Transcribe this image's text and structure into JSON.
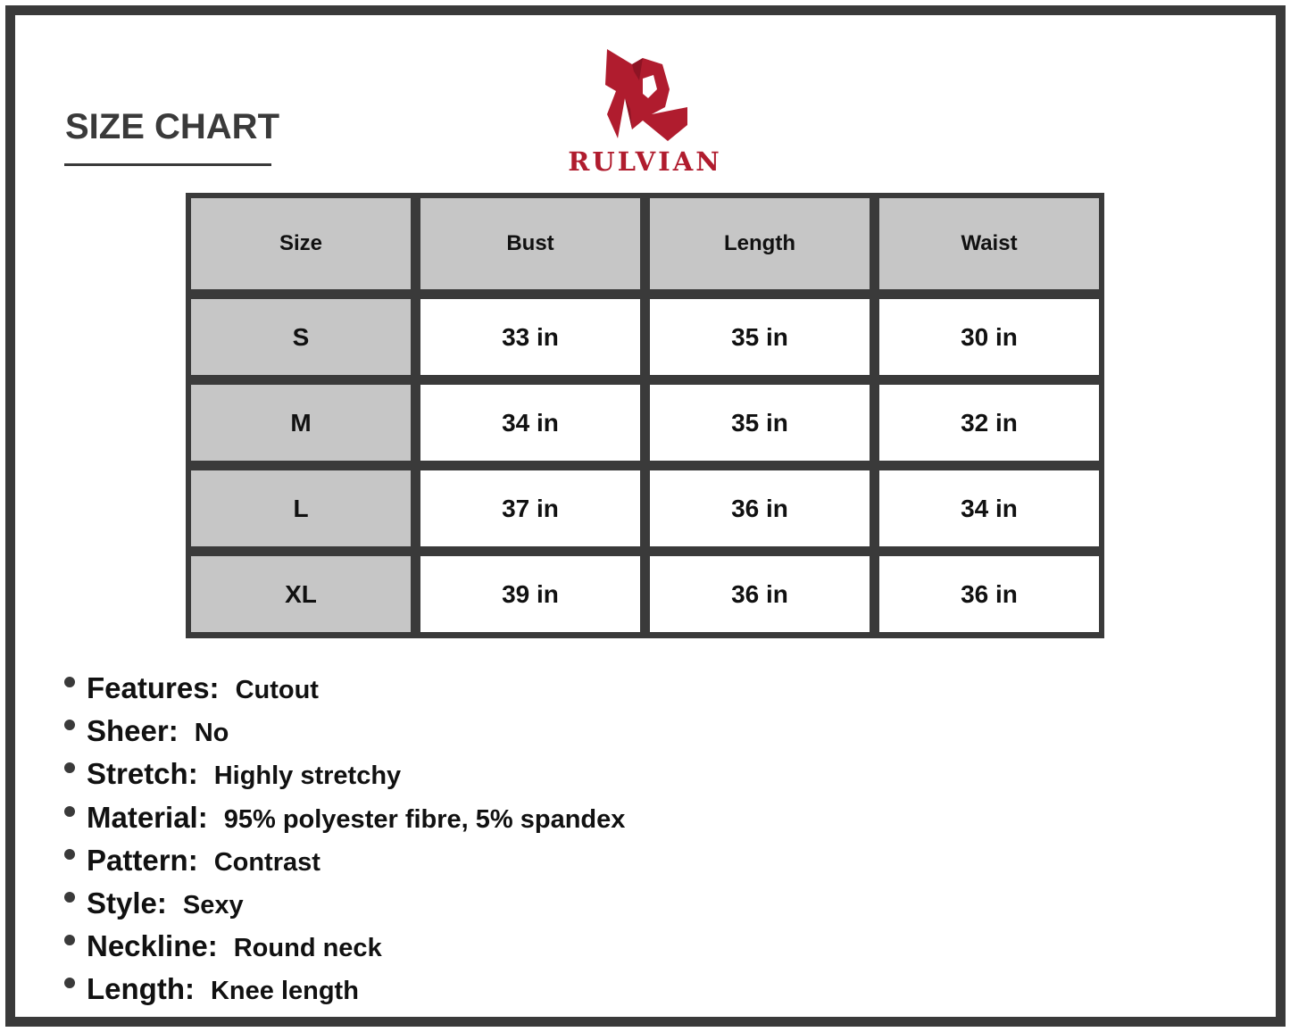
{
  "title": "SIZE CHART",
  "brand": {
    "name": "RULVIAN",
    "color": "#b01c2e"
  },
  "table": {
    "headers": [
      "Size",
      "Bust",
      "Length",
      "Waist"
    ],
    "rows": [
      [
        "S",
        "33 in",
        "35 in",
        "30 in"
      ],
      [
        "M",
        "34 in",
        "35 in",
        "32 in"
      ],
      [
        "L",
        "37 in",
        "36 in",
        "34 in"
      ],
      [
        "XL",
        "39 in",
        "36 in",
        "36 in"
      ]
    ]
  },
  "specs": [
    {
      "label": "Features:",
      "value": "Cutout"
    },
    {
      "label": "Sheer:",
      "value": "No"
    },
    {
      "label": "Stretch:",
      "value": "Highly stretchy"
    },
    {
      "label": "Material:",
      "value": "95% polyester fibre, 5% spandex"
    },
    {
      "label": "Pattern:",
      "value": "Contrast"
    },
    {
      "label": "Style:",
      "value": "Sexy"
    },
    {
      "label": "Neckline:",
      "value": "Round neck"
    },
    {
      "label": "Length:",
      "value": "Knee length"
    }
  ]
}
